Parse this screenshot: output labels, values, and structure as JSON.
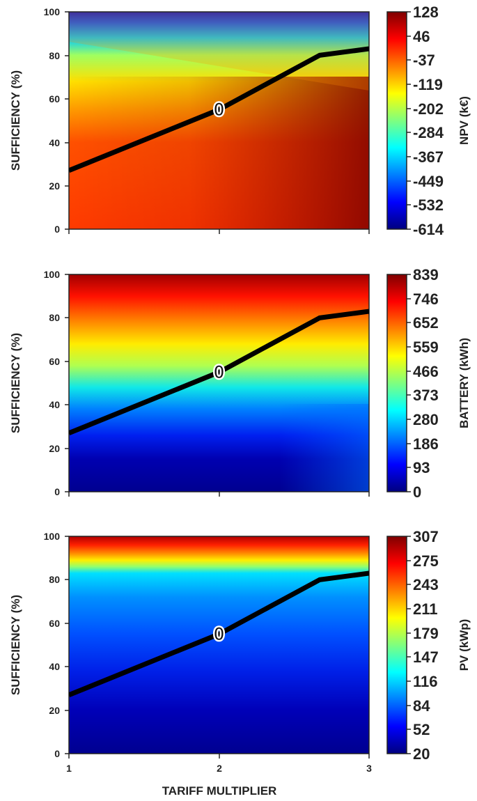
{
  "chart_data": [
    {
      "type": "heatmap",
      "id": "npv",
      "ylabel": "SUFFICIENCY (%)",
      "colorbar_label": "NPV (k€)",
      "xlim": [
        1,
        3
      ],
      "ylim": [
        0,
        100
      ],
      "x_ticks": [
        "1",
        "2",
        "3"
      ],
      "y_ticks": [
        "0",
        "20",
        "40",
        "60",
        "80",
        "100"
      ],
      "colorbar_ticks": [
        "128",
        "46",
        "-37",
        "-119",
        "-202",
        "-284",
        "-367",
        "-449",
        "-532",
        "-614"
      ],
      "zero_contour": {
        "label": "0",
        "x": [
          1,
          2,
          2.67,
          3
        ],
        "y": [
          27,
          55,
          80,
          83
        ]
      },
      "label_position": [
        2,
        55
      ]
    },
    {
      "type": "heatmap",
      "id": "battery",
      "ylabel": "SUFFICIENCY (%)",
      "colorbar_label": "BATTERY (kWh)",
      "xlim": [
        1,
        3
      ],
      "ylim": [
        0,
        100
      ],
      "x_ticks": [
        "1",
        "2",
        "3"
      ],
      "y_ticks": [
        "0",
        "20",
        "40",
        "60",
        "80",
        "100"
      ],
      "colorbar_ticks": [
        "839",
        "746",
        "652",
        "559",
        "466",
        "373",
        "280",
        "186",
        "93",
        "0"
      ],
      "zero_contour": {
        "label": "0",
        "x": [
          1,
          2,
          2.67,
          3
        ],
        "y": [
          27,
          55,
          80,
          83
        ]
      },
      "label_position": [
        2,
        55
      ]
    },
    {
      "type": "heatmap",
      "id": "pv",
      "ylabel": "SUFFICIENCY (%)",
      "colorbar_label": "PV (kWp)",
      "xlabel": "TARIFF MULTIPLIER",
      "xlim": [
        1,
        3
      ],
      "ylim": [
        0,
        100
      ],
      "x_ticks": [
        "1",
        "2",
        "3"
      ],
      "y_ticks": [
        "0",
        "20",
        "40",
        "60",
        "80",
        "100"
      ],
      "colorbar_ticks": [
        "307",
        "275",
        "243",
        "211",
        "179",
        "147",
        "116",
        "84",
        "52",
        "20"
      ],
      "zero_contour": {
        "label": "0",
        "x": [
          1,
          2,
          2.67,
          3
        ],
        "y": [
          27,
          55,
          80,
          83
        ]
      },
      "label_position": [
        2,
        55
      ]
    }
  ],
  "colors": {
    "jet": [
      "#00007f",
      "#0000ff",
      "#007fff",
      "#00ffff",
      "#7fff7f",
      "#ffff00",
      "#ff7f00",
      "#ff0000",
      "#7f0000"
    ]
  }
}
